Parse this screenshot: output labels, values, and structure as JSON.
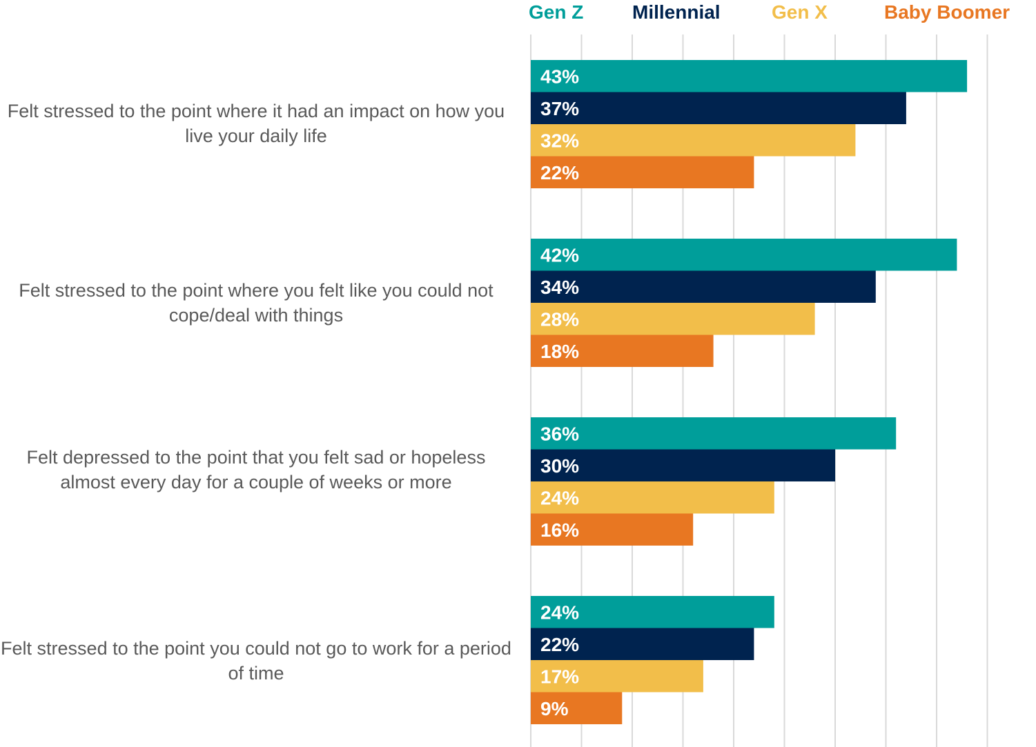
{
  "chart_data": {
    "type": "bar",
    "orientation": "horizontal",
    "categories": [
      "Felt stressed to the point where it had an impact on how you live your daily life",
      "Felt stressed to the point where you felt like you could not cope/deal with things",
      "Felt depressed to the point that you felt sad or hopeless almost every day for a couple of weeks or more",
      "Felt stressed to the point you could not go to work for a period of time"
    ],
    "series": [
      {
        "name": "Gen Z",
        "color": "#009E9A",
        "values": [
          43,
          42,
          36,
          24
        ]
      },
      {
        "name": "Millennial",
        "color": "#00234F",
        "values": [
          37,
          34,
          30,
          22
        ]
      },
      {
        "name": "Gen X",
        "color": "#F2BE4A",
        "values": [
          32,
          28,
          24,
          17
        ]
      },
      {
        "name": "Baby Boomer",
        "color": "#E87722",
        "values": [
          22,
          18,
          16,
          9
        ]
      }
    ],
    "value_suffix": "%",
    "xlim": [
      0,
      45
    ],
    "grid": true,
    "legend_position": "top",
    "data_label_color": "#ffffff"
  }
}
